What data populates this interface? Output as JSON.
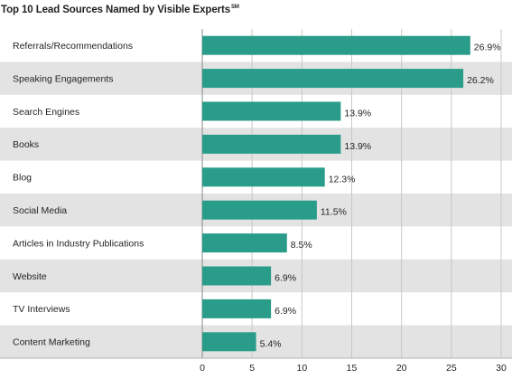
{
  "chart_data": {
    "type": "bar",
    "orientation": "horizontal",
    "title": "Top 10 Lead Sources Named by Visible Experts",
    "title_trademark": "SM",
    "categories": [
      "Referrals/Recommendations",
      "Speaking Engagements",
      "Search Engines",
      "Books",
      "Blog",
      "Social Media",
      "Articles in Industry Publications",
      "Website",
      "TV Interviews",
      "Content Marketing"
    ],
    "values": [
      26.9,
      26.2,
      13.9,
      13.9,
      12.3,
      11.5,
      8.5,
      6.9,
      6.9,
      5.4
    ],
    "value_labels": [
      "26.9%",
      "26.2%",
      "13.9%",
      "13.9%",
      "12.3%",
      "11.5%",
      "8.5%",
      "6.9%",
      "6.9%",
      "5.4%"
    ],
    "xlim": [
      0,
      30
    ],
    "x_ticks": [
      0,
      5,
      10,
      15,
      20,
      25,
      30
    ],
    "xlabel": "",
    "ylabel": "",
    "grid": true,
    "bar_color": "#2a9d8a",
    "alt_row_color": "#e3e3e4",
    "grid_color": "#c8c8c8"
  }
}
